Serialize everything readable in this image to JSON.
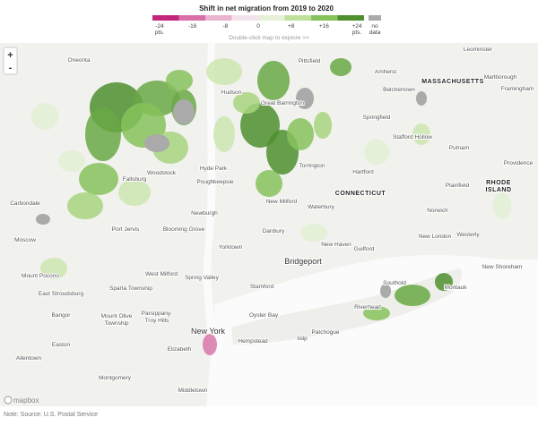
{
  "legend": {
    "title": "Shift in net migration from 2019 to 2020",
    "ticks": [
      "-24",
      "-16",
      "-8",
      "0",
      "+8",
      "+16",
      "+24"
    ],
    "tick_units": [
      "pts.",
      "pts."
    ],
    "no_data": [
      "no",
      "data"
    ],
    "hint": "Double-click map to explore >>"
  },
  "controls": {
    "zoom_in": "+",
    "zoom_out": "-"
  },
  "places": [
    "Oneonta",
    "Pittsfield",
    "Amherst",
    "Leominster",
    "MASSACHUSETTS",
    "Belchertown",
    "Marlborough",
    "Framingham",
    "Hudson",
    "Great Barrington",
    "Springfield",
    "Stafford Hollow",
    "Putnam",
    "Providence",
    "Hyde Park",
    "Poughkeepsie",
    "Torrington",
    "Hartford",
    "Woodstock",
    "Fallsburg",
    "Carbondale",
    "CONNECTICUT",
    "Plainfield",
    "RHODE",
    "ISLAND",
    "New Milford",
    "Waterbury",
    "Norwich",
    "Newburgh",
    "Danbury",
    "Port Jervis",
    "Blooming Grove",
    "New London",
    "Westerly",
    "Moscow",
    "New Haven",
    "Yorktown",
    "Guilford",
    "Bridgeport",
    "New Shoreham",
    "Mount Pocono",
    "West Milford",
    "Spring Valley",
    "Southold",
    "Montauk",
    "East Stroudsburg",
    "Sparta Township",
    "Stamford",
    "Riverhead",
    "Bangor",
    "Mount Olive",
    "Township",
    "Parsippany-",
    "Troy Hills",
    "Oyster Bay",
    "New York",
    "Easton",
    "Hempstead",
    "Islip",
    "Patchogue",
    "Elizabeth",
    "Allentown",
    "Montgomery",
    "Middletown"
  ],
  "attribution": "mapbox",
  "note": "Note: Source: U.S. Postal Service"
}
